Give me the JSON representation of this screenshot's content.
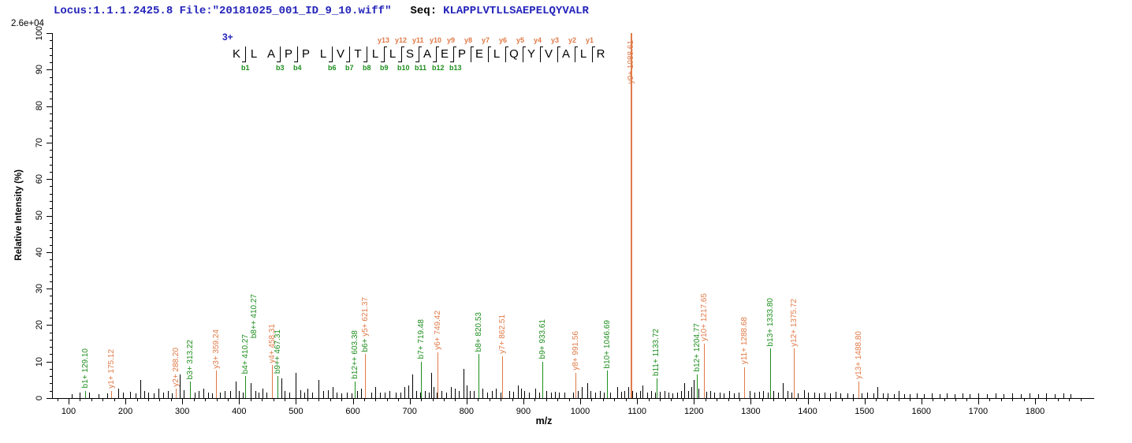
{
  "header": {
    "locus_file": "Locus:1.1.1.2425.8 File:\"20181025_001_ID_9_10.wiff\"",
    "seq_label": "Seq:",
    "sequence": "KLAPPLVTLLSAEPELQYVALR",
    "max_intensity": "2.6e+04"
  },
  "colors": {
    "b_ion": "#1d8e1d",
    "y_ion": "#e07a48",
    "noise": "#000000",
    "header_blue": "#2424bb"
  },
  "sequence_panel": {
    "charge": "3+",
    "residues": [
      "K",
      "L",
      "A",
      "P",
      "P",
      "L",
      "V",
      "T",
      "L",
      "L",
      "S",
      "A",
      "E",
      "P",
      "E",
      "L",
      "Q",
      "Y",
      "V",
      "A",
      "L",
      "R"
    ],
    "sites": [
      {
        "b": "b1",
        "y": null
      },
      {
        "b": null,
        "y": null
      },
      {
        "b": "b3",
        "y": null
      },
      {
        "b": "b4",
        "y": null
      },
      {
        "b": null,
        "y": null
      },
      {
        "b": "b6",
        "y": null
      },
      {
        "b": "b7",
        "y": null
      },
      {
        "b": "b8",
        "y": null
      },
      {
        "b": "b9",
        "y": "y13"
      },
      {
        "b": "b10",
        "y": "y12"
      },
      {
        "b": "b11",
        "y": "y11"
      },
      {
        "b": "b12",
        "y": "y10"
      },
      {
        "b": "b13",
        "y": "y9"
      },
      {
        "b": null,
        "y": "y8"
      },
      {
        "b": null,
        "y": "y7"
      },
      {
        "b": null,
        "y": "y6"
      },
      {
        "b": null,
        "y": "y5"
      },
      {
        "b": null,
        "y": "y4"
      },
      {
        "b": null,
        "y": "y3"
      },
      {
        "b": null,
        "y": "y2"
      },
      {
        "b": null,
        "y": "y1"
      }
    ]
  },
  "chart_data": {
    "type": "stem",
    "title": "MS/MS fragment spectrum",
    "xlabel": "m/z",
    "ylabel": "Relative  Intensity (%)",
    "xlim": [
      100,
      1800
    ],
    "ylim": [
      0,
      100
    ],
    "x_ticks": [
      100,
      200,
      300,
      400,
      500,
      600,
      700,
      800,
      900,
      1000,
      1100,
      1200,
      1300,
      1400,
      1500,
      1600,
      1700,
      1800
    ],
    "y_ticks": [
      0,
      10,
      20,
      30,
      40,
      50,
      60,
      70,
      80,
      90,
      100
    ],
    "x_minor_step": 20,
    "y_minor_step": 2,
    "grid": false,
    "legend": false,
    "annotated_peaks": [
      {
        "ion": "b1+",
        "mz": 129.1,
        "intensity": 2,
        "series": "b",
        "label": "b1+ 129.10"
      },
      {
        "ion": "y1+",
        "mz": 175.12,
        "intensity": 2,
        "series": "y",
        "label": "y1+ 175.12"
      },
      {
        "ion": "y2+",
        "mz": 288.2,
        "intensity": 2.5,
        "series": "y",
        "label": "y2+ 288.20"
      },
      {
        "ion": "b3+",
        "mz": 313.22,
        "intensity": 4.5,
        "series": "b",
        "label": "b3+ 313.22"
      },
      {
        "ion": "y3+",
        "mz": 359.24,
        "intensity": 7.5,
        "series": "y",
        "label": "y3+ 359.24"
      },
      {
        "ion": "b4+",
        "mz": 410.27,
        "intensity": 6,
        "series": "b",
        "label": "b4+ 410.27",
        "label2": "b8++ 410.27"
      },
      {
        "ion": "y4+",
        "mz": 458.31,
        "intensity": 9,
        "series": "y",
        "label": "y4+ 458.31"
      },
      {
        "ion": "b9++",
        "mz": 467.31,
        "intensity": 6,
        "series": "b",
        "label": "b9++ 467.31"
      },
      {
        "ion": "b12++",
        "mz": 603.38,
        "intensity": 4.5,
        "series": "b",
        "label": "b12++ 603.38"
      },
      {
        "ion": "b6+/y5+",
        "mz": 621.37,
        "intensity": 12,
        "series": "y",
        "label_parts": [
          {
            "text": "b6+ ",
            "series": "b"
          },
          {
            "text": "y5+ 621.37",
            "series": "y"
          }
        ]
      },
      {
        "ion": "b7+",
        "mz": 719.48,
        "intensity": 10,
        "series": "b",
        "label": "b7+ 719.48"
      },
      {
        "ion": "y6+",
        "mz": 749.42,
        "intensity": 12.5,
        "series": "y",
        "label": "y6+ 749.42"
      },
      {
        "ion": "b8+",
        "mz": 820.53,
        "intensity": 12,
        "series": "b",
        "label": "b8+ 820.53"
      },
      {
        "ion": "y7+",
        "mz": 862.51,
        "intensity": 11.5,
        "series": "y",
        "label": "y7+ 862.51"
      },
      {
        "ion": "b9+",
        "mz": 933.61,
        "intensity": 10,
        "series": "b",
        "label": "b9+ 933.61"
      },
      {
        "ion": "y8+",
        "mz": 991.56,
        "intensity": 7,
        "series": "y",
        "label": "y8+ 991.56"
      },
      {
        "ion": "b10+",
        "mz": 1046.69,
        "intensity": 7.5,
        "series": "b",
        "label": "b10+ 1046.69"
      },
      {
        "ion": "y9+",
        "mz": 1088.61,
        "intensity": 100,
        "series": "y",
        "label": "y9+ 1088.61",
        "tall": true
      },
      {
        "ion": "b11+",
        "mz": 1133.72,
        "intensity": 5.5,
        "series": "b",
        "label": "b11+ 1133.72"
      },
      {
        "ion": "b12+",
        "mz": 1204.77,
        "intensity": 6.5,
        "series": "b",
        "label": "b12+ 1204.77"
      },
      {
        "ion": "y10+",
        "mz": 1217.65,
        "intensity": 15,
        "series": "y",
        "label": "y10+ 1217.65"
      },
      {
        "ion": "y11+",
        "mz": 1288.68,
        "intensity": 8.5,
        "series": "y",
        "label": "y11+ 1288.68"
      },
      {
        "ion": "b13+",
        "mz": 1333.8,
        "intensity": 13.5,
        "series": "b",
        "label": "b13+ 1333.80"
      },
      {
        "ion": "y12+",
        "mz": 1375.72,
        "intensity": 13.5,
        "series": "y",
        "label": "y12+ 1375.72"
      },
      {
        "ion": "y13+",
        "mz": 1488.8,
        "intensity": 4.5,
        "series": "y",
        "label": "y13+ 1488.80"
      }
    ],
    "noise_peaks": [
      [
        105,
        1
      ],
      [
        119,
        1.5
      ],
      [
        136,
        1.5
      ],
      [
        152,
        1
      ],
      [
        168,
        1.2
      ],
      [
        187,
        2.5
      ],
      [
        196,
        1.5
      ],
      [
        208,
        1.8
      ],
      [
        218,
        1.2
      ],
      [
        226,
        5
      ],
      [
        233,
        2
      ],
      [
        240,
        1.5
      ],
      [
        250,
        1.2
      ],
      [
        258,
        2.5
      ],
      [
        266,
        1.5
      ],
      [
        275,
        2
      ],
      [
        282,
        1.2
      ],
      [
        296,
        6.5
      ],
      [
        302,
        2.2
      ],
      [
        322,
        1.5
      ],
      [
        329,
        2
      ],
      [
        337,
        2.5
      ],
      [
        345,
        1.5
      ],
      [
        352,
        1.2
      ],
      [
        366,
        1.5
      ],
      [
        374,
        2
      ],
      [
        384,
        2
      ],
      [
        394,
        4.5
      ],
      [
        400,
        2
      ],
      [
        406,
        1.5
      ],
      [
        420,
        4
      ],
      [
        428,
        2
      ],
      [
        434,
        1.5
      ],
      [
        441,
        2.5
      ],
      [
        448,
        1.5
      ],
      [
        474,
        5.5
      ],
      [
        480,
        2
      ],
      [
        488,
        1.5
      ],
      [
        499,
        7
      ],
      [
        507,
        2.2
      ],
      [
        514,
        1.5
      ],
      [
        520,
        2.5
      ],
      [
        528,
        1.5
      ],
      [
        540,
        5
      ],
      [
        548,
        2
      ],
      [
        556,
        2.2
      ],
      [
        564,
        3
      ],
      [
        572,
        1.5
      ],
      [
        580,
        1.2
      ],
      [
        590,
        1.5
      ],
      [
        598,
        1.3
      ],
      [
        608,
        2
      ],
      [
        614,
        2.5
      ],
      [
        632,
        1.5
      ],
      [
        640,
        3
      ],
      [
        648,
        1.5
      ],
      [
        656,
        1.5
      ],
      [
        664,
        2
      ],
      [
        676,
        1.5
      ],
      [
        684,
        1.5
      ],
      [
        690,
        3
      ],
      [
        697,
        3.5
      ],
      [
        705,
        6.5
      ],
      [
        712,
        2
      ],
      [
        718,
        1.5
      ],
      [
        726,
        2
      ],
      [
        733,
        1.5
      ],
      [
        738,
        7
      ],
      [
        742,
        3
      ],
      [
        748,
        1.5
      ],
      [
        756,
        2
      ],
      [
        764,
        1.5
      ],
      [
        772,
        3
      ],
      [
        780,
        2.5
      ],
      [
        786,
        2
      ],
      [
        795,
        8
      ],
      [
        800,
        3.5
      ],
      [
        806,
        2
      ],
      [
        812,
        2
      ],
      [
        828,
        2.5
      ],
      [
        836,
        1.5
      ],
      [
        845,
        2
      ],
      [
        852,
        2.5
      ],
      [
        860,
        1.5
      ],
      [
        875,
        2
      ],
      [
        882,
        1.8
      ],
      [
        890,
        3.5
      ],
      [
        896,
        2.5
      ],
      [
        902,
        2
      ],
      [
        910,
        1.5
      ],
      [
        921,
        2.5
      ],
      [
        928,
        1.5
      ],
      [
        940,
        2
      ],
      [
        948,
        1.5
      ],
      [
        955,
        1.8
      ],
      [
        962,
        1.5
      ],
      [
        972,
        1.5
      ],
      [
        988,
        1.5
      ],
      [
        996,
        2
      ],
      [
        1003,
        3
      ],
      [
        1013,
        4
      ],
      [
        1018,
        2
      ],
      [
        1026,
        1.5
      ],
      [
        1035,
        2
      ],
      [
        1042,
        1.5
      ],
      [
        1052,
        1.5
      ],
      [
        1065,
        3
      ],
      [
        1072,
        1.8
      ],
      [
        1078,
        2
      ],
      [
        1084,
        3
      ],
      [
        1092,
        2
      ],
      [
        1098,
        1.5
      ],
      [
        1105,
        2
      ],
      [
        1110,
        3.5
      ],
      [
        1118,
        1.5
      ],
      [
        1125,
        2
      ],
      [
        1132,
        1.5
      ],
      [
        1140,
        1.8
      ],
      [
        1148,
        2
      ],
      [
        1155,
        1.5
      ],
      [
        1162,
        1.3
      ],
      [
        1170,
        1.5
      ],
      [
        1178,
        2
      ],
      [
        1183,
        4
      ],
      [
        1190,
        2
      ],
      [
        1196,
        3
      ],
      [
        1200,
        5
      ],
      [
        1208,
        2.5
      ],
      [
        1222,
        1.8
      ],
      [
        1228,
        2
      ],
      [
        1236,
        1.5
      ],
      [
        1245,
        1.5
      ],
      [
        1252,
        1.2
      ],
      [
        1262,
        2
      ],
      [
        1270,
        1.3
      ],
      [
        1278,
        1.5
      ],
      [
        1298,
        2
      ],
      [
        1306,
        1.5
      ],
      [
        1315,
        1.8
      ],
      [
        1322,
        2
      ],
      [
        1330,
        1.5
      ],
      [
        1340,
        2
      ],
      [
        1348,
        1.5
      ],
      [
        1356,
        4
      ],
      [
        1364,
        2
      ],
      [
        1372,
        1.5
      ],
      [
        1382,
        1.3
      ],
      [
        1393,
        2.2
      ],
      [
        1400,
        1.5
      ],
      [
        1412,
        1.5
      ],
      [
        1420,
        1.2
      ],
      [
        1430,
        1.5
      ],
      [
        1440,
        1.2
      ],
      [
        1449,
        1.8
      ],
      [
        1458,
        1.2
      ],
      [
        1470,
        1.2
      ],
      [
        1480,
        1
      ],
      [
        1495,
        1.3
      ],
      [
        1505,
        1.5
      ],
      [
        1515,
        1.2
      ],
      [
        1523,
        3
      ],
      [
        1532,
        1.3
      ],
      [
        1540,
        1.2
      ],
      [
        1552,
        1
      ],
      [
        1560,
        2
      ],
      [
        1570,
        1
      ],
      [
        1580,
        1
      ],
      [
        1592,
        1.2
      ],
      [
        1605,
        1
      ],
      [
        1618,
        1.2
      ],
      [
        1632,
        1
      ],
      [
        1645,
        1.2
      ],
      [
        1658,
        1
      ],
      [
        1672,
        1.3
      ],
      [
        1685,
        1
      ],
      [
        1700,
        1.2
      ],
      [
        1715,
        1
      ],
      [
        1730,
        1.2
      ],
      [
        1745,
        1
      ],
      [
        1760,
        1.2
      ],
      [
        1775,
        1
      ],
      [
        1790,
        1.2
      ],
      [
        1805,
        1
      ],
      [
        1820,
        1.2
      ],
      [
        1835,
        1
      ],
      [
        1850,
        1.2
      ],
      [
        1862,
        1
      ]
    ]
  }
}
